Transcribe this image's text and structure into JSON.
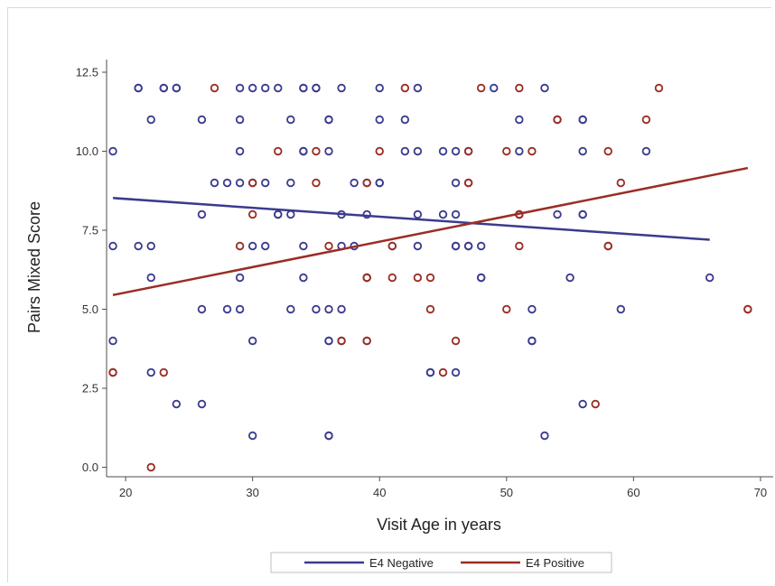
{
  "chart_data": {
    "type": "scatter",
    "title": "",
    "xlabel": "Visit Age in years",
    "ylabel": "Pairs Mixed Score",
    "xlim": [
      18.5,
      71
    ],
    "ylim": [
      -0.3,
      12.9
    ],
    "xticks": [
      20,
      30,
      40,
      50,
      60,
      70
    ],
    "yticks": [
      0,
      2.5,
      5,
      7.5,
      10,
      12.5
    ],
    "xtick_labels": [
      "20",
      "30",
      "40",
      "50",
      "60",
      "70"
    ],
    "ytick_labels": [
      "0.0",
      "2.5",
      "5.0",
      "7.5",
      "10.0",
      "12.5"
    ],
    "grid": false,
    "legend_position": "bottom",
    "series": [
      {
        "name": "E4 Negative",
        "color": "#3b3b8f",
        "points": [
          [
            19,
            10
          ],
          [
            19,
            7
          ],
          [
            19,
            4
          ],
          [
            21,
            12
          ],
          [
            21,
            12
          ],
          [
            21,
            7
          ],
          [
            22,
            11
          ],
          [
            22,
            7
          ],
          [
            22,
            6
          ],
          [
            22,
            3
          ],
          [
            23,
            12
          ],
          [
            23,
            12
          ],
          [
            24,
            12
          ],
          [
            24,
            12
          ],
          [
            24,
            2
          ],
          [
            26,
            11
          ],
          [
            26,
            8
          ],
          [
            26,
            5
          ],
          [
            26,
            2
          ],
          [
            27,
            9
          ],
          [
            28,
            9
          ],
          [
            28,
            5
          ],
          [
            29,
            12
          ],
          [
            29,
            11
          ],
          [
            29,
            10
          ],
          [
            29,
            9
          ],
          [
            29,
            6
          ],
          [
            29,
            5
          ],
          [
            30,
            12
          ],
          [
            30,
            9
          ],
          [
            30,
            7
          ],
          [
            30,
            4
          ],
          [
            30,
            1
          ],
          [
            31,
            12
          ],
          [
            31,
            9
          ],
          [
            31,
            7
          ],
          [
            32,
            12
          ],
          [
            32,
            8
          ],
          [
            32,
            8
          ],
          [
            33,
            11
          ],
          [
            33,
            9
          ],
          [
            33,
            8
          ],
          [
            33,
            5
          ],
          [
            34,
            12
          ],
          [
            34,
            12
          ],
          [
            34,
            10
          ],
          [
            34,
            10
          ],
          [
            34,
            7
          ],
          [
            34,
            6
          ],
          [
            35,
            12
          ],
          [
            35,
            12
          ],
          [
            35,
            5
          ],
          [
            36,
            11
          ],
          [
            36,
            11
          ],
          [
            36,
            10
          ],
          [
            36,
            5
          ],
          [
            36,
            4
          ],
          [
            36,
            4
          ],
          [
            36,
            1
          ],
          [
            36,
            1
          ],
          [
            37,
            12
          ],
          [
            37,
            8
          ],
          [
            37,
            7
          ],
          [
            37,
            5
          ],
          [
            37,
            4
          ],
          [
            38,
            9
          ],
          [
            38,
            7
          ],
          [
            39,
            9
          ],
          [
            39,
            8
          ],
          [
            39,
            6
          ],
          [
            39,
            4
          ],
          [
            40,
            12
          ],
          [
            40,
            11
          ],
          [
            40,
            9
          ],
          [
            40,
            9
          ],
          [
            41,
            7
          ],
          [
            42,
            11
          ],
          [
            42,
            10
          ],
          [
            43,
            12
          ],
          [
            43,
            10
          ],
          [
            43,
            8
          ],
          [
            43,
            7
          ],
          [
            44,
            3
          ],
          [
            44,
            3
          ],
          [
            45,
            10
          ],
          [
            45,
            8
          ],
          [
            46,
            10
          ],
          [
            46,
            9
          ],
          [
            46,
            8
          ],
          [
            46,
            7
          ],
          [
            46,
            7
          ],
          [
            46,
            3
          ],
          [
            47,
            10
          ],
          [
            47,
            7
          ],
          [
            47,
            7
          ],
          [
            48,
            7
          ],
          [
            48,
            6
          ],
          [
            48,
            6
          ],
          [
            49,
            12
          ],
          [
            51,
            11
          ],
          [
            51,
            10
          ],
          [
            51,
            8
          ],
          [
            52,
            5
          ],
          [
            52,
            4
          ],
          [
            52,
            4
          ],
          [
            53,
            12
          ],
          [
            53,
            1
          ],
          [
            54,
            11
          ],
          [
            54,
            8
          ],
          [
            55,
            6
          ],
          [
            56,
            11
          ],
          [
            56,
            11
          ],
          [
            56,
            10
          ],
          [
            56,
            8
          ],
          [
            56,
            8
          ],
          [
            56,
            2
          ],
          [
            59,
            5
          ],
          [
            61,
            10
          ],
          [
            66,
            6
          ]
        ],
        "fit": {
          "x": [
            19,
            66
          ],
          "y": [
            8.52,
            7.2
          ]
        }
      },
      {
        "name": "E4 Positive",
        "color": "#9b2d24",
        "points": [
          [
            19,
            3
          ],
          [
            19,
            3
          ],
          [
            22,
            0
          ],
          [
            23,
            3
          ],
          [
            27,
            12
          ],
          [
            29,
            7
          ],
          [
            30,
            9
          ],
          [
            30,
            8
          ],
          [
            32,
            10
          ],
          [
            35,
            10
          ],
          [
            35,
            9
          ],
          [
            36,
            7
          ],
          [
            37,
            4
          ],
          [
            39,
            9
          ],
          [
            39,
            6
          ],
          [
            39,
            6
          ],
          [
            39,
            4
          ],
          [
            40,
            10
          ],
          [
            41,
            7
          ],
          [
            41,
            6
          ],
          [
            42,
            12
          ],
          [
            43,
            6
          ],
          [
            44,
            6
          ],
          [
            44,
            5
          ],
          [
            45,
            3
          ],
          [
            46,
            4
          ],
          [
            47,
            10
          ],
          [
            47,
            9
          ],
          [
            47,
            9
          ],
          [
            48,
            12
          ],
          [
            50,
            10
          ],
          [
            50,
            5
          ],
          [
            51,
            12
          ],
          [
            51,
            8
          ],
          [
            51,
            8
          ],
          [
            51,
            7
          ],
          [
            52,
            10
          ],
          [
            54,
            11
          ],
          [
            57,
            2
          ],
          [
            58,
            10
          ],
          [
            58,
            7
          ],
          [
            58,
            7
          ],
          [
            59,
            9
          ],
          [
            61,
            11
          ],
          [
            62,
            12
          ],
          [
            69,
            5
          ],
          [
            69,
            5
          ]
        ],
        "fit": {
          "x": [
            19,
            69
          ],
          "y": [
            5.45,
            9.47
          ]
        }
      }
    ]
  }
}
